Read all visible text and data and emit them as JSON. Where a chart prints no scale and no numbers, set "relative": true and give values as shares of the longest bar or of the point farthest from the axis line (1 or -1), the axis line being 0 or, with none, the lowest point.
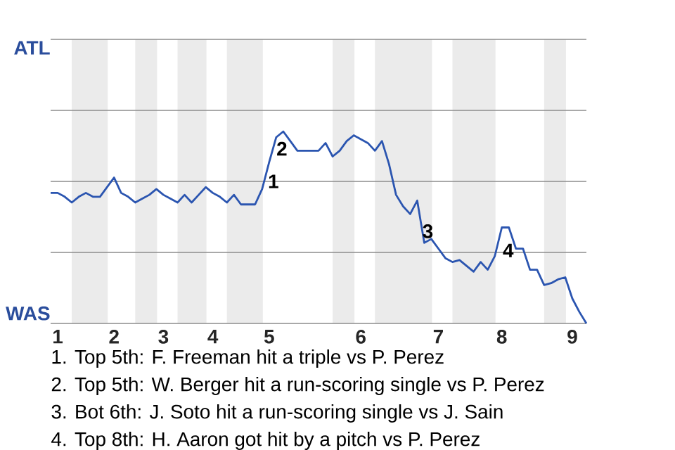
{
  "chart_data": {
    "type": "line",
    "relative": true,
    "categories": [
      null,
      "1",
      null,
      null,
      null,
      null,
      null,
      null,
      null,
      "2",
      null,
      null,
      null,
      null,
      null,
      null,
      "3",
      null,
      null,
      null,
      null,
      null,
      null,
      "4",
      null,
      null,
      null,
      null,
      null,
      null,
      null,
      "5",
      null,
      null,
      null,
      null,
      null,
      null,
      null,
      null,
      null,
      null,
      null,
      null,
      "6",
      null,
      null,
      null,
      null,
      null,
      null,
      null,
      null,
      null,
      null,
      "7",
      null,
      null,
      null,
      null,
      null,
      null,
      null,
      null,
      "8",
      null,
      null,
      null,
      null,
      null,
      null,
      null,
      null,
      null,
      "9",
      null,
      null
    ],
    "series": [
      {
        "color": "#2b55b0",
        "values": [
          0.68,
          0.68,
          0.66,
          0.63,
          0.66,
          0.68,
          0.66,
          0.66,
          0.71,
          0.76,
          0.68,
          0.66,
          0.63,
          0.65,
          0.67,
          0.7,
          0.67,
          0.65,
          0.63,
          0.67,
          0.63,
          0.67,
          0.71,
          0.68,
          0.66,
          0.63,
          0.67,
          0.62,
          0.62,
          0.62,
          0.7,
          0.84,
          0.97,
          1,
          0.95,
          0.9,
          0.9,
          0.9,
          0.9,
          0.94,
          0.87,
          0.9,
          0.95,
          0.98,
          0.96,
          0.94,
          0.9,
          0.95,
          0.83,
          0.67,
          0.61,
          0.57,
          0.64,
          0.42,
          0.44,
          0.39,
          0.34,
          0.32,
          0.33,
          0.3,
          0.27,
          0.32,
          0.28,
          0.35,
          0.5,
          0.5,
          0.39,
          0.39,
          0.28,
          0.28,
          0.2,
          0.21,
          0.23,
          0.24,
          0.13,
          0.06,
          0
        ]
      }
    ],
    "ref_lines": [
      {
        "axis": "y",
        "value": 0,
        "color": "#8c8c8c"
      },
      {
        "axis": "y",
        "value": 0.37,
        "color": "#8c8c8c"
      },
      {
        "axis": "y",
        "value": 0.74,
        "color": "#8c8c8c"
      },
      {
        "axis": "y",
        "value": 1.11,
        "color": "#8c8c8c"
      },
      {
        "axis": "y",
        "value": 1.48,
        "color": "#8c8c8c"
      }
    ],
    "annotations": [
      "ATL",
      "WAS",
      "1",
      "2",
      "3",
      "4",
      "1. Top 5th: F. Freeman hit a triple vs P. Perez",
      "2. Top 5th: W. Berger hit a run-scoring single vs P. Perez",
      "3. Bot 6th: J. Soto hit a run-scoring single vs J. Sain",
      "4. Top 8th: H. Aaron got hit by a pitch vs P. Perez"
    ]
  }
}
